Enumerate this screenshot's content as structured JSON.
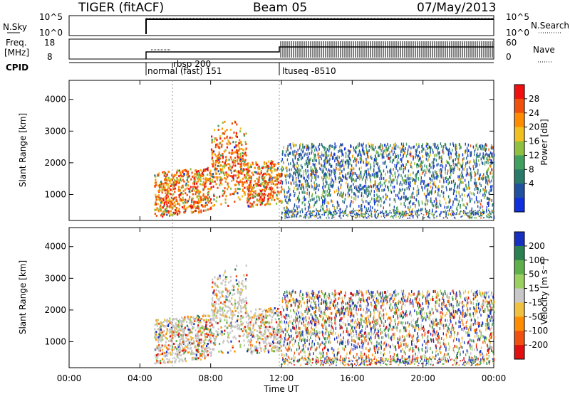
{
  "header": {
    "radar": "TIGER (fitACF)",
    "beam": "Beam 05",
    "date": "07/May/2013"
  },
  "nsky_panel": {
    "left_label": "N.Sky",
    "right_label": "N.Search",
    "left_ticks": [
      "10^5",
      "10^0"
    ],
    "right_ticks": [
      "10^5",
      "10^0"
    ]
  },
  "freq_panel": {
    "left_label_line1": "Freq.",
    "left_label_line2": "[MHz]",
    "right_label": "Nave",
    "left_ticks": [
      "18",
      "8"
    ],
    "right_ticks": [
      "60",
      "0"
    ]
  },
  "cpid_panel": {
    "label": "CPID",
    "modes": [
      "rbsp 200",
      "normal (fast) 151",
      "ltuseq -8510"
    ]
  },
  "colorbars": [
    {
      "title": "Power [dB]",
      "ticks": [
        "28",
        "24",
        "20",
        "16",
        "12",
        "8",
        "4"
      ],
      "colors": [
        "#f01010",
        "#f0500c",
        "#ff8c00",
        "#f0c020",
        "#90c040",
        "#40a060",
        "#2a7a6a",
        "#2050a0",
        "#1030e0"
      ]
    },
    {
      "title": "Velocity [m s⁻¹]",
      "ticks": [
        "200",
        "100",
        "50",
        "15",
        "-15",
        "-50",
        "-100",
        "-200"
      ],
      "colors": [
        "#1830c0",
        "#2a8050",
        "#5fb04a",
        "#9ad060",
        "#c8c8c8",
        "#f0c040",
        "#ff8c00",
        "#f05010",
        "#e01010"
      ]
    }
  ],
  "x_axis": {
    "label": "Time UT",
    "ticks": [
      "00:00",
      "04:00",
      "08:00",
      "12:00",
      "16:00",
      "20:00",
      "00:00"
    ]
  },
  "chart_data": [
    {
      "type": "heatmap",
      "title": "",
      "xlabel": "Time UT",
      "ylabel": "Slant Range [km]",
      "xlim": [
        0,
        24
      ],
      "ylim": [
        180,
        4600
      ],
      "yticks": [
        1000,
        2000,
        3000,
        4000
      ],
      "colorbar_label": "Power [dB]",
      "colorbar_range": [
        0,
        32
      ],
      "scatter_regions": [
        {
          "t_start": 4.8,
          "t_end": 12.0,
          "range_start": 600,
          "range_end": 3500,
          "value": "20-32 dB dominant"
        },
        {
          "t_start": 12.0,
          "t_end": 24.0,
          "range_start": 300,
          "range_end": 2600,
          "value": "4-16 dB dominant"
        }
      ]
    },
    {
      "type": "heatmap",
      "title": "",
      "xlabel": "Time UT",
      "ylabel": "Slant Range [km]",
      "xlim": [
        0,
        24
      ],
      "ylim": [
        180,
        4600
      ],
      "yticks": [
        1000,
        2000,
        3000,
        4000
      ],
      "colorbar_label": "Velocity [m s⁻¹]",
      "colorbar_range": [
        -200,
        200
      ],
      "scatter_regions": [
        {
          "t_start": 4.8,
          "t_end": 12.0,
          "range_start": 600,
          "range_end": 3500,
          "value": "low velocity, mixed"
        },
        {
          "t_start": 12.0,
          "t_end": 24.0,
          "range_start": 300,
          "range_end": 2600,
          "value": "mixed -200 to 200"
        }
      ]
    }
  ]
}
